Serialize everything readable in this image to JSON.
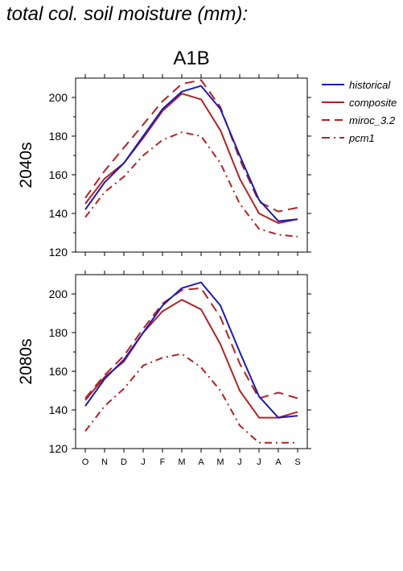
{
  "page_title": "total col. soil moisture (mm):",
  "colors": {
    "historical": "#1a1ab8",
    "future": "#b22222"
  },
  "chart_data": {
    "type": "line",
    "scenario": "A1B",
    "months": [
      "O",
      "N",
      "D",
      "J",
      "F",
      "M",
      "A",
      "M",
      "J",
      "J",
      "A",
      "S"
    ],
    "ylim": [
      120,
      210
    ],
    "yticks": [
      120,
      140,
      160,
      180,
      200
    ],
    "legend": {
      "placement": "top-right",
      "entries": [
        {
          "name": "historical",
          "style": "solid",
          "color": "#1a1ab8"
        },
        {
          "name": "composite",
          "style": "solid",
          "color": "#b22222"
        },
        {
          "name": "miroc_3.2",
          "style": "long-dash",
          "color": "#b22222"
        },
        {
          "name": "pcm1",
          "style": "dash-dot",
          "color": "#b22222"
        }
      ]
    },
    "panels": [
      {
        "label": "2040s",
        "series": [
          {
            "name": "historical",
            "values": [
              142,
              156,
              166,
              180,
              194,
              203,
              206,
              194,
              170,
              147,
              136,
              137
            ]
          },
          {
            "name": "composite",
            "values": [
              145,
              158,
              166,
              179,
              193,
              202,
              199,
              183,
              158,
              140,
              135,
              137
            ]
          },
          {
            "name": "miroc_3.2",
            "values": [
              148,
              162,
              174,
              186,
              198,
              207,
              209,
              195,
              168,
              146,
              141,
              143
            ]
          },
          {
            "name": "pcm1",
            "values": [
              138,
              151,
              159,
              170,
              178,
              182,
              180,
              166,
              145,
              132,
              129,
              128
            ]
          }
        ]
      },
      {
        "label": "2080s",
        "series": [
          {
            "name": "historical",
            "values": [
              142,
              156,
              166,
              180,
              194,
              203,
              206,
              194,
              170,
              147,
              136,
              137
            ]
          },
          {
            "name": "composite",
            "values": [
              145,
              157,
              165,
              180,
              191,
              197,
              192,
              174,
              150,
              136,
              136,
              139
            ]
          },
          {
            "name": "miroc_3.2",
            "values": [
              146,
              158,
              168,
              182,
              195,
              202,
              203,
              188,
              164,
              146,
              149,
              146
            ]
          },
          {
            "name": "pcm1",
            "values": [
              129,
              142,
              151,
              163,
              167,
              169,
              162,
              150,
              132,
              123,
              123,
              123
            ]
          }
        ]
      }
    ]
  }
}
